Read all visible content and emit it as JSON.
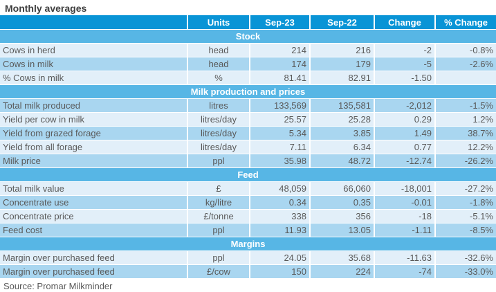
{
  "page_title": "Monthly averages",
  "source_note": "Source: Promar Milkminder",
  "colors": {
    "header_blue": "#0994d6",
    "section_blue": "#57b6e5",
    "row_light": "#e2eff9",
    "row_dark": "#a9d6f0",
    "text_gray": "#595959",
    "title_gray": "#3f3f3f",
    "header_text": "#ffffff"
  },
  "table": {
    "columns": [
      "",
      "Units",
      "Sep-23",
      "Sep-22",
      "Change",
      "% Change"
    ],
    "sections": [
      {
        "title": "Stock",
        "rows": [
          [
            "Cows in herd",
            "head",
            "214",
            "216",
            "-2",
            "-0.8%"
          ],
          [
            "Cows in milk",
            "head",
            "174",
            "179",
            "-5",
            "-2.6%"
          ],
          [
            "% Cows in milk",
            "%",
            "81.41",
            "82.91",
            "-1.50",
            ""
          ]
        ]
      },
      {
        "title": "Milk production and prices",
        "rows": [
          [
            "Total milk produced",
            "litres",
            "133,569",
            "135,581",
            "-2,012",
            "-1.5%"
          ],
          [
            "Yield per cow in milk",
            "litres/day",
            "25.57",
            "25.28",
            "0.29",
            "1.2%"
          ],
          [
            "Yield from grazed forage",
            "litres/day",
            "5.34",
            "3.85",
            "1.49",
            "38.7%"
          ],
          [
            "Yield from all forage",
            "litres/day",
            "7.11",
            "6.34",
            "0.77",
            "12.2%"
          ],
          [
            "Milk price",
            "ppl",
            "35.98",
            "48.72",
            "-12.74",
            "-26.2%"
          ]
        ]
      },
      {
        "title": "Feed",
        "rows": [
          [
            "Total milk value",
            "£",
            "48,059",
            "66,060",
            "-18,001",
            "-27.2%"
          ],
          [
            "Concentrate use",
            "kg/litre",
            "0.34",
            "0.35",
            "-0.01",
            "-1.8%"
          ],
          [
            "Concentrate price",
            "£/tonne",
            "338",
            "356",
            "-18",
            "-5.1%"
          ],
          [
            "Feed cost",
            "ppl",
            "11.93",
            "13.05",
            "-1.11",
            "-8.5%"
          ]
        ]
      },
      {
        "title": "Margins",
        "rows": [
          [
            "Margin over purchased feed",
            "ppl",
            "24.05",
            "35.68",
            "-11.63",
            "-32.6%"
          ],
          [
            "Margin over purchased feed",
            "£/cow",
            "150",
            "224",
            "-74",
            "-33.0%"
          ]
        ]
      }
    ]
  },
  "chart_data": {
    "type": "table",
    "title": "Monthly averages",
    "columns": [
      "",
      "Units",
      "Sep-23",
      "Sep-22",
      "Change",
      "% Change"
    ],
    "rows": [
      [
        "Stock",
        "",
        "",
        "",
        "",
        ""
      ],
      [
        "Cows in herd",
        "head",
        214,
        216,
        -2,
        "-0.8%"
      ],
      [
        "Cows in milk",
        "head",
        174,
        179,
        -5,
        "-2.6%"
      ],
      [
        "% Cows in milk",
        "%",
        81.41,
        82.91,
        -1.5,
        ""
      ],
      [
        "Milk production and prices",
        "",
        "",
        "",
        "",
        ""
      ],
      [
        "Total milk produced",
        "litres",
        133569,
        135581,
        -2012,
        "-1.5%"
      ],
      [
        "Yield per cow in milk",
        "litres/day",
        25.57,
        25.28,
        0.29,
        "1.2%"
      ],
      [
        "Yield from grazed forage",
        "litres/day",
        5.34,
        3.85,
        1.49,
        "38.7%"
      ],
      [
        "Yield from all forage",
        "litres/day",
        7.11,
        6.34,
        0.77,
        "12.2%"
      ],
      [
        "Milk price",
        "ppl",
        35.98,
        48.72,
        -12.74,
        "-26.2%"
      ],
      [
        "Feed",
        "",
        "",
        "",
        "",
        ""
      ],
      [
        "Total milk value",
        "£",
        48059,
        66060,
        -18001,
        "-27.2%"
      ],
      [
        "Concentrate use",
        "kg/litre",
        0.34,
        0.35,
        -0.01,
        "-1.8%"
      ],
      [
        "Concentrate price",
        "£/tonne",
        338,
        356,
        -18,
        "-5.1%"
      ],
      [
        "Feed cost",
        "ppl",
        11.93,
        13.05,
        -1.11,
        "-8.5%"
      ],
      [
        "Margins",
        "",
        "",
        "",
        "",
        ""
      ],
      [
        "Margin over purchased feed",
        "ppl",
        24.05,
        35.68,
        -11.63,
        "-32.6%"
      ],
      [
        "Margin over purchased feed",
        "£/cow",
        150,
        224,
        -74,
        "-33.0%"
      ]
    ],
    "annotations": [
      "Source: Promar Milkminder"
    ]
  }
}
